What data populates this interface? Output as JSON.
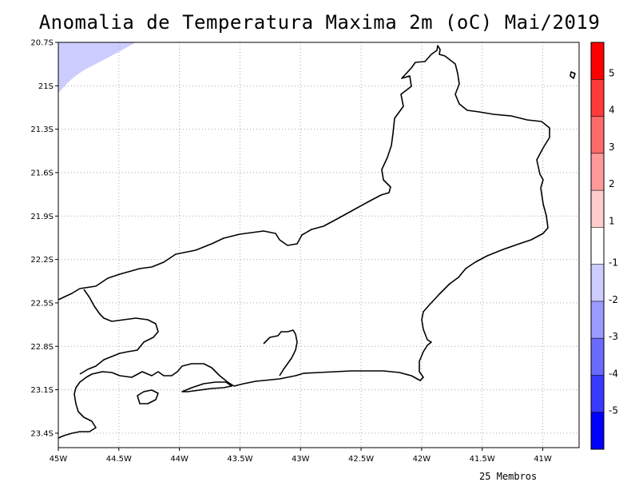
{
  "title": "Anomalia de Temperatura Maxima 2m (oC) Mai/2019",
  "footer_note": "25 Membros",
  "chart_data": {
    "type": "heatmap",
    "title": "Anomalia de Temperatura Maxima 2m (oC) Mai/2019",
    "x_ticks": [
      "45W",
      "44.5W",
      "44W",
      "43.5W",
      "43W",
      "42.5W",
      "42W",
      "41.5W",
      "41W"
    ],
    "y_ticks": [
      "20.7S",
      "21S",
      "21.3S",
      "21.6S",
      "21.9S",
      "22.2S",
      "22.5S",
      "22.8S",
      "23.1S",
      "23.4S"
    ],
    "xlim": [
      -45,
      -40.7
    ],
    "ylim": [
      -23.5,
      -20.7
    ],
    "grid": true,
    "field_region": "small -1 to -2 anomaly patch in top-left corner",
    "colorbar": {
      "labels": [
        "5",
        "4",
        "3",
        "2",
        "1",
        "-1",
        "-2",
        "-3",
        "-4",
        "-5"
      ],
      "colors": [
        "#ff0000",
        "#ff3a3a",
        "#ff6a6a",
        "#ff9a9a",
        "#ffcccc",
        "#ffffff",
        "#ccccff",
        "#9a9aff",
        "#6a6aff",
        "#3a3aff",
        "#0000ff"
      ]
    }
  }
}
